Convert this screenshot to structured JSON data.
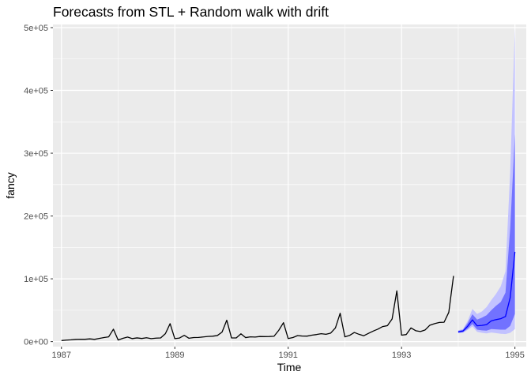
{
  "chart_data": {
    "type": "line",
    "title": "Forecasts from STL +  Random walk with drift",
    "xlabel": "Time",
    "ylabel": "fancy",
    "xlim": [
      1986.85,
      1995.2
    ],
    "ylim": [
      -8000,
      505000
    ],
    "x_ticks": [
      1987,
      1989,
      1991,
      1993,
      1995
    ],
    "x_tick_labels": [
      "1987",
      "1989",
      "1991",
      "1993",
      "1995"
    ],
    "y_ticks": [
      0,
      100000,
      200000,
      300000,
      400000,
      500000
    ],
    "y_tick_labels": [
      "0e+00",
      "1e+05",
      "2e+05",
      "3e+05",
      "4e+05",
      "5e+05"
    ],
    "grid": true,
    "colors": {
      "panel": "#ebebeb",
      "grid": "#ffffff",
      "history": "#000000",
      "forecast": "#0000ff",
      "band80": "#7272ff",
      "band95": "#c2c2ff"
    },
    "series": [
      {
        "role": "history",
        "start": 1987.0,
        "frequency": 12,
        "values": [
          1664,
          2398,
          2841,
          3547,
          3753,
          3715,
          4350,
          3566,
          5022,
          6424,
          7601,
          19757,
          2500,
          5198,
          7225,
          4806,
          5900,
          4951,
          6179,
          4752,
          5496,
          5835,
          12601,
          28542,
          4717,
          5702,
          9957,
          5304,
          6492,
          6631,
          7349,
          8177,
          8574,
          9690,
          15152,
          34061,
          5921,
          5815,
          12421,
          6370,
          7609,
          7224,
          8121,
          7979,
          8093,
          8476,
          17914,
          30114,
          4827,
          6470,
          9639,
          8821,
          8722,
          10209,
          11277,
          12552,
          11637,
          13607,
          21823,
          45061,
          7615,
          9849,
          14558,
          11587,
          9332,
          13082,
          16732,
          19889,
          23933,
          25391,
          36024,
          80721,
          10243,
          11267,
          21826,
          17357,
          15997,
          18601,
          26155,
          28587,
          30505,
          30821,
          46634,
          104661
        ]
      },
      {
        "role": "forecast",
        "start": 1994.0,
        "frequency": 12,
        "mean": [
          15500,
          16800,
          24500,
          34500,
          25200,
          25800,
          27000,
          33000,
          35000,
          36500,
          40000,
          70000,
          143000
        ],
        "lo80": [
          14000,
          15000,
          20500,
          28000,
          19000,
          18000,
          17500,
          20000,
          19500,
          19000,
          19000,
          25000,
          44000
        ],
        "hi80": [
          17000,
          18800,
          29500,
          43500,
          35000,
          38000,
          42000,
          50000,
          57000,
          63000,
          78000,
          180000,
          330000
        ],
        "lo95": [
          13500,
          14000,
          18500,
          24000,
          15500,
          14000,
          13000,
          14500,
          13500,
          12500,
          12000,
          14000,
          20000
        ],
        "hi95": [
          18000,
          20000,
          33000,
          52000,
          44000,
          48000,
          55000,
          66000,
          76000,
          88000,
          112000,
          270000,
          500000
        ]
      }
    ]
  }
}
